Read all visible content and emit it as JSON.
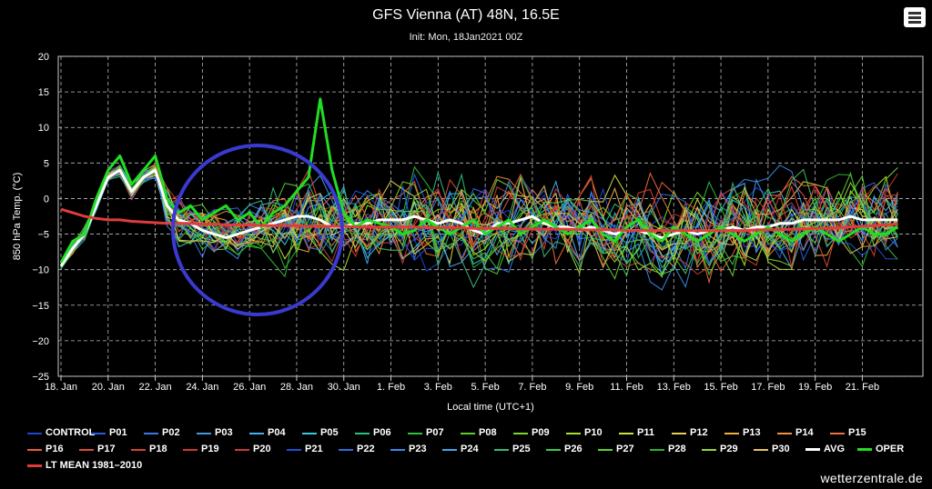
{
  "chart_data": {
    "type": "line",
    "title": "GFS Vienna (AT) 48N, 16.5E",
    "subtitle": "Init: Mon, 18Jan2021 00Z",
    "xlabel": "Local time (UTC+1)",
    "ylabel": "850 hPa Temp. (°C)",
    "ylim": [
      -25,
      20
    ],
    "yticks": [
      "20",
      "15",
      "10",
      "5",
      "0",
      "−5",
      "−10",
      "−15",
      "−20",
      "−25"
    ],
    "xticks": [
      "18. Jan",
      "20. Jan",
      "22. Jan",
      "24. Jan",
      "26. Jan",
      "28. Jan",
      "30. Jan",
      "1. Feb",
      "3. Feb",
      "5. Feb",
      "7. Feb",
      "9. Feb",
      "11. Feb",
      "13. Feb",
      "15. Feb",
      "17. Feb",
      "19. Feb",
      "21. Feb"
    ],
    "grid": "dashed",
    "legend_position": "bottom",
    "x_days": [
      0,
      0.5,
      1,
      1.5,
      2,
      2.5,
      3,
      3.5,
      4,
      4.5,
      5,
      5.5,
      6,
      6.5,
      7,
      7.5,
      8,
      8.5,
      9,
      9.5,
      10,
      10.5,
      11,
      11.5,
      12,
      12.5,
      13,
      13.5,
      14,
      14.5,
      15,
      15.5,
      16,
      16.5,
      17,
      17.5,
      18,
      18.5,
      19,
      19.5,
      20,
      20.5,
      21,
      21.5,
      22,
      22.5,
      23,
      23.5,
      24,
      24.5,
      25,
      25.5,
      26,
      26.5,
      27,
      27.5,
      28,
      28.5,
      29,
      29.5,
      30,
      30.5,
      31,
      31.5,
      32,
      32.5,
      33,
      33.5,
      34,
      34.5,
      35,
      35.5
    ],
    "series": [
      {
        "name": "AVG",
        "color": "#ffffff",
        "width": 3,
        "values": [
          -9.5,
          -7,
          -5,
          -1,
          3,
          4,
          1,
          3,
          4,
          -1,
          -3,
          -3.5,
          -4.5,
          -5,
          -5.5,
          -5,
          -4.5,
          -4,
          -3.5,
          -3,
          -2.5,
          -2.5,
          -3,
          -4,
          -4,
          -3.5,
          -3.5,
          -3,
          -3,
          -3,
          -2.5,
          -3,
          -3.5,
          -3,
          -3.5,
          -4.5,
          -5,
          -3.5,
          -3.5,
          -3,
          -2.5,
          -3.5,
          -4,
          -4,
          -4.5,
          -4,
          -4.5,
          -5,
          -4.5,
          -4.5,
          -5,
          -5.5,
          -5,
          -4.5,
          -5,
          -4.5,
          -4.5,
          -4,
          -4.5,
          -4,
          -4,
          -3.5,
          -3.5,
          -3,
          -3,
          -3,
          -3,
          -2.5,
          -3,
          -3,
          -3,
          -3
        ]
      },
      {
        "name": "OPER",
        "color": "#22dd22",
        "width": 3,
        "values": [
          -9,
          -6,
          -5,
          0,
          4,
          6,
          2,
          4,
          6,
          0,
          -2,
          -1,
          -3,
          -2,
          -1,
          -3,
          -2,
          -4,
          -2,
          -1,
          1,
          3,
          14,
          4,
          -2,
          -4,
          -3,
          -3.5,
          -4,
          -5,
          -4.5,
          -3,
          -4,
          -5,
          -4,
          -3,
          -5,
          -4,
          -3,
          -5,
          -4,
          -3,
          -4,
          -5,
          -4,
          -3,
          -5,
          -6,
          -4,
          -3,
          -5,
          -6,
          -4,
          -5,
          -6,
          -5,
          -4,
          -5,
          -6,
          -5,
          -4,
          -5,
          -6,
          -5,
          -4,
          -5,
          -6,
          -5,
          -4,
          -5,
          -5,
          -4
        ]
      },
      {
        "name": "LT MEAN 1981-2010",
        "color": "#e03c3c",
        "width": 3,
        "values": [
          -1.5,
          -2,
          -2.5,
          -2.8,
          -3,
          -3,
          -3.2,
          -3.3,
          -3.4,
          -3.5,
          -3.5,
          -3.5,
          -3.6,
          -3.6,
          -3.7,
          -3.7,
          -3.7,
          -3.8,
          -3.8,
          -3.8,
          -3.8,
          -3.9,
          -3.9,
          -3.9,
          -3.9,
          -4,
          -4,
          -4,
          -4,
          -4,
          -4,
          -4.1,
          -4.1,
          -4.1,
          -4.1,
          -4.2,
          -4.2,
          -4.2,
          -4.2,
          -4.3,
          -4.3,
          -4.3,
          -4.3,
          -4.3,
          -4.4,
          -4.4,
          -4.4,
          -4.4,
          -4.5,
          -4.5,
          -4.5,
          -4.5,
          -4.5,
          -4.5,
          -4.5,
          -4.5,
          -4.5,
          -4.5,
          -4.5,
          -4.4,
          -4.4,
          -4.4,
          -4.3,
          -4.3,
          -4.2,
          -4.2,
          -4.1,
          -4,
          -3.9,
          -3.8,
          -3.7,
          -3.6
        ]
      }
    ],
    "ensemble": [
      {
        "name": "CONTROL",
        "color": "#1f44d0"
      },
      {
        "name": "P01",
        "color": "#2a5be0"
      },
      {
        "name": "P02",
        "color": "#3a78e8"
      },
      {
        "name": "P03",
        "color": "#3e9ae8"
      },
      {
        "name": "P04",
        "color": "#47b0f0"
      },
      {
        "name": "P05",
        "color": "#38c8e0"
      },
      {
        "name": "P06",
        "color": "#2ac080"
      },
      {
        "name": "P07",
        "color": "#32c03a"
      },
      {
        "name": "P08",
        "color": "#5ad02a"
      },
      {
        "name": "P09",
        "color": "#7ad82a"
      },
      {
        "name": "P10",
        "color": "#a8e030"
      },
      {
        "name": "P11",
        "color": "#d0e040"
      },
      {
        "name": "P12",
        "color": "#e8d050"
      },
      {
        "name": "P13",
        "color": "#f0b040"
      },
      {
        "name": "P14",
        "color": "#f09040"
      },
      {
        "name": "P15",
        "color": "#f07040"
      },
      {
        "name": "P16",
        "color": "#e85a40"
      },
      {
        "name": "P17",
        "color": "#e04a3a"
      },
      {
        "name": "P18",
        "color": "#d84030"
      },
      {
        "name": "P19",
        "color": "#d03a30"
      },
      {
        "name": "P20",
        "color": "#c83a40"
      },
      {
        "name": "P21",
        "color": "#2050d8"
      },
      {
        "name": "P22",
        "color": "#2e6ce0"
      },
      {
        "name": "P23",
        "color": "#3a88e8"
      },
      {
        "name": "P24",
        "color": "#44a6ee"
      },
      {
        "name": "P25",
        "color": "#38b878"
      },
      {
        "name": "P26",
        "color": "#40c850"
      },
      {
        "name": "P27",
        "color": "#60d038"
      },
      {
        "name": "P28",
        "color": "#30b030"
      },
      {
        "name": "P29",
        "color": "#90d838"
      },
      {
        "name": "P30",
        "color": "#e8c060"
      }
    ]
  },
  "legend_items": [
    {
      "name": "CONTROL",
      "color": "#1f44d0"
    },
    {
      "name": "P01",
      "color": "#2a5be0"
    },
    {
      "name": "P02",
      "color": "#3a78e8"
    },
    {
      "name": "P03",
      "color": "#3e9ae8"
    },
    {
      "name": "P04",
      "color": "#47b0f0"
    },
    {
      "name": "P05",
      "color": "#38c8e0"
    },
    {
      "name": "P06",
      "color": "#2ac080"
    },
    {
      "name": "P07",
      "color": "#32c03a"
    },
    {
      "name": "P08",
      "color": "#5ad02a"
    },
    {
      "name": "P09",
      "color": "#7ad82a"
    },
    {
      "name": "P10",
      "color": "#a8e030"
    },
    {
      "name": "P11",
      "color": "#d0e040"
    },
    {
      "name": "P12",
      "color": "#e8d050"
    },
    {
      "name": "P13",
      "color": "#f0b040"
    },
    {
      "name": "P14",
      "color": "#f09040"
    },
    {
      "name": "P15",
      "color": "#f07040"
    },
    {
      "name": "P16",
      "color": "#e85a40"
    },
    {
      "name": "P17",
      "color": "#e04a3a"
    },
    {
      "name": "P18",
      "color": "#d84030"
    },
    {
      "name": "P19",
      "color": "#d03a30"
    },
    {
      "name": "P20",
      "color": "#c83a40"
    },
    {
      "name": "P21",
      "color": "#2050d8"
    },
    {
      "name": "P22",
      "color": "#2e6ce0"
    },
    {
      "name": "P23",
      "color": "#3a88e8"
    },
    {
      "name": "P24",
      "color": "#44a6ee"
    },
    {
      "name": "P25",
      "color": "#38b878"
    },
    {
      "name": "P26",
      "color": "#40c850"
    },
    {
      "name": "P27",
      "color": "#60d038"
    },
    {
      "name": "P28",
      "color": "#30b030"
    },
    {
      "name": "P29",
      "color": "#90d838"
    },
    {
      "name": "P30",
      "color": "#e8c060"
    },
    {
      "name": "AVG",
      "color": "#ffffff",
      "bold": true
    },
    {
      "name": "OPER",
      "color": "#22dd22",
      "bold": true
    },
    {
      "name": "LT MEAN 1981–2010",
      "color": "#e03c3c",
      "bold": true
    }
  ],
  "watermark": "wetterzentrale.de",
  "annotation": {
    "color": "#3a3ad0",
    "shape": "circle"
  }
}
